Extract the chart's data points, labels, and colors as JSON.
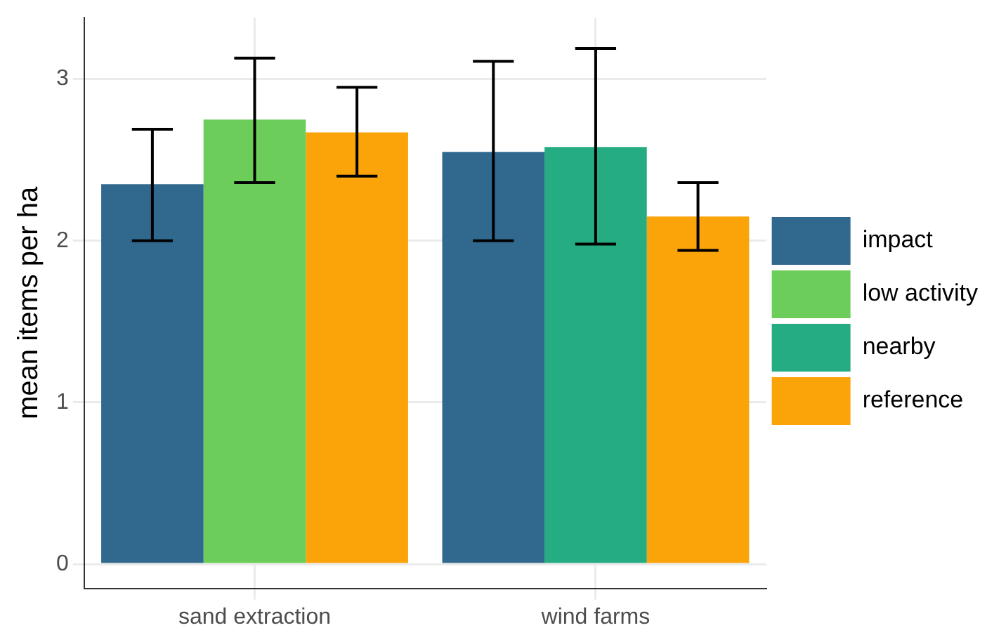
{
  "chart_data": {
    "type": "bar",
    "ylabel": "mean items per ha",
    "categories": [
      "sand extraction",
      "wind farms"
    ],
    "series": [
      {
        "name": "impact",
        "color": "#31688e",
        "values": [
          2.35,
          2.55
        ],
        "errors": [
          [
            2.0,
            2.69
          ],
          [
            2.0,
            3.11
          ]
        ]
      },
      {
        "name": "low activity",
        "color": "#6ccd5a",
        "values": [
          2.75,
          null
        ],
        "errors": [
          [
            2.36,
            3.13
          ],
          null
        ]
      },
      {
        "name": "nearby",
        "color": "#25ac82",
        "values": [
          null,
          2.58
        ],
        "errors": [
          null,
          [
            1.98,
            3.19
          ]
        ]
      },
      {
        "name": "reference",
        "color": "#fba40a",
        "values": [
          2.67,
          2.15
        ],
        "errors": [
          [
            2.4,
            2.95
          ],
          [
            1.94,
            2.36
          ]
        ]
      }
    ],
    "ylim": [
      -0.15,
      3.38
    ],
    "yticks": [
      0,
      1,
      2,
      3
    ],
    "grid": true,
    "legend": "right"
  }
}
